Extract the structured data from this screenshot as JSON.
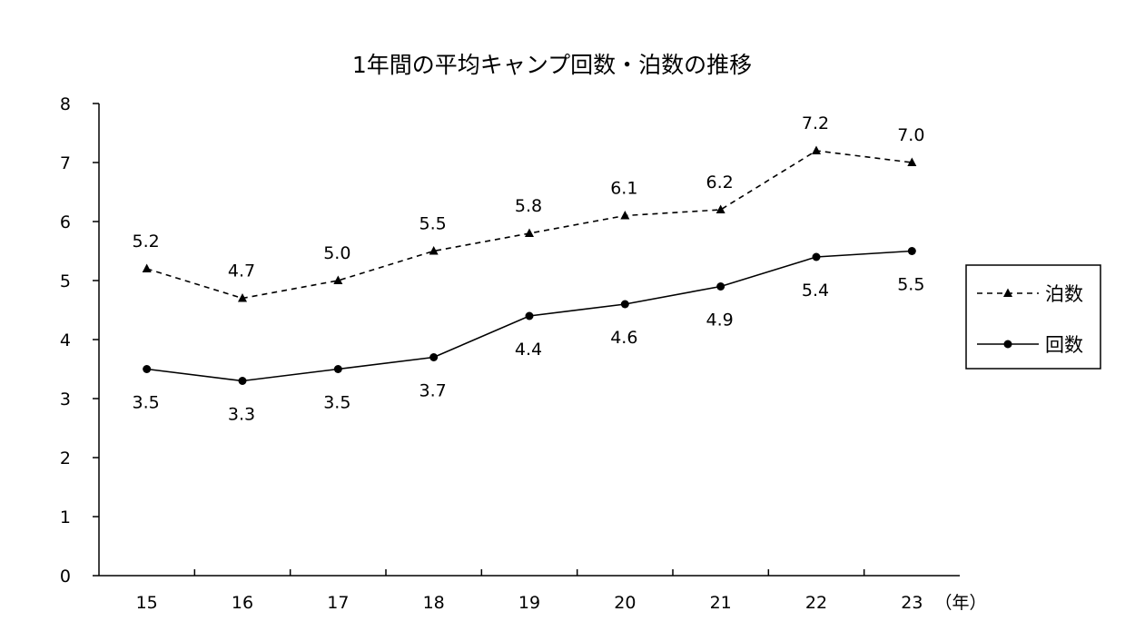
{
  "chart_data": {
    "type": "line",
    "title": "1年間の平均キャンプ回数・泊数の推移",
    "x_unit": "（年）",
    "categories": [
      "15",
      "16",
      "17",
      "18",
      "19",
      "20",
      "21",
      "22",
      "23"
    ],
    "ylim": [
      0,
      8
    ],
    "yticks": [
      "0",
      "1",
      "2",
      "3",
      "4",
      "5",
      "6",
      "7",
      "8"
    ],
    "grid": false,
    "legend_position": "right",
    "series": [
      {
        "name": "泊数",
        "style": "dashed",
        "marker": "triangle",
        "color": "#000000",
        "values": [
          5.2,
          4.7,
          5.0,
          5.5,
          5.8,
          6.1,
          6.2,
          7.2,
          7.0
        ],
        "labels": [
          "5.2",
          "4.7",
          "5.0",
          "5.5",
          "5.8",
          "6.1",
          "6.2",
          "7.2",
          "7.0"
        ],
        "label_side": "above"
      },
      {
        "name": "回数",
        "style": "solid",
        "marker": "circle",
        "color": "#000000",
        "values": [
          3.5,
          3.3,
          3.5,
          3.7,
          4.4,
          4.6,
          4.9,
          5.4,
          5.5
        ],
        "labels": [
          "3.5",
          "3.3",
          "3.5",
          "3.7",
          "4.4",
          "4.6",
          "4.9",
          "5.4",
          "5.5"
        ],
        "label_side": "below"
      }
    ]
  }
}
